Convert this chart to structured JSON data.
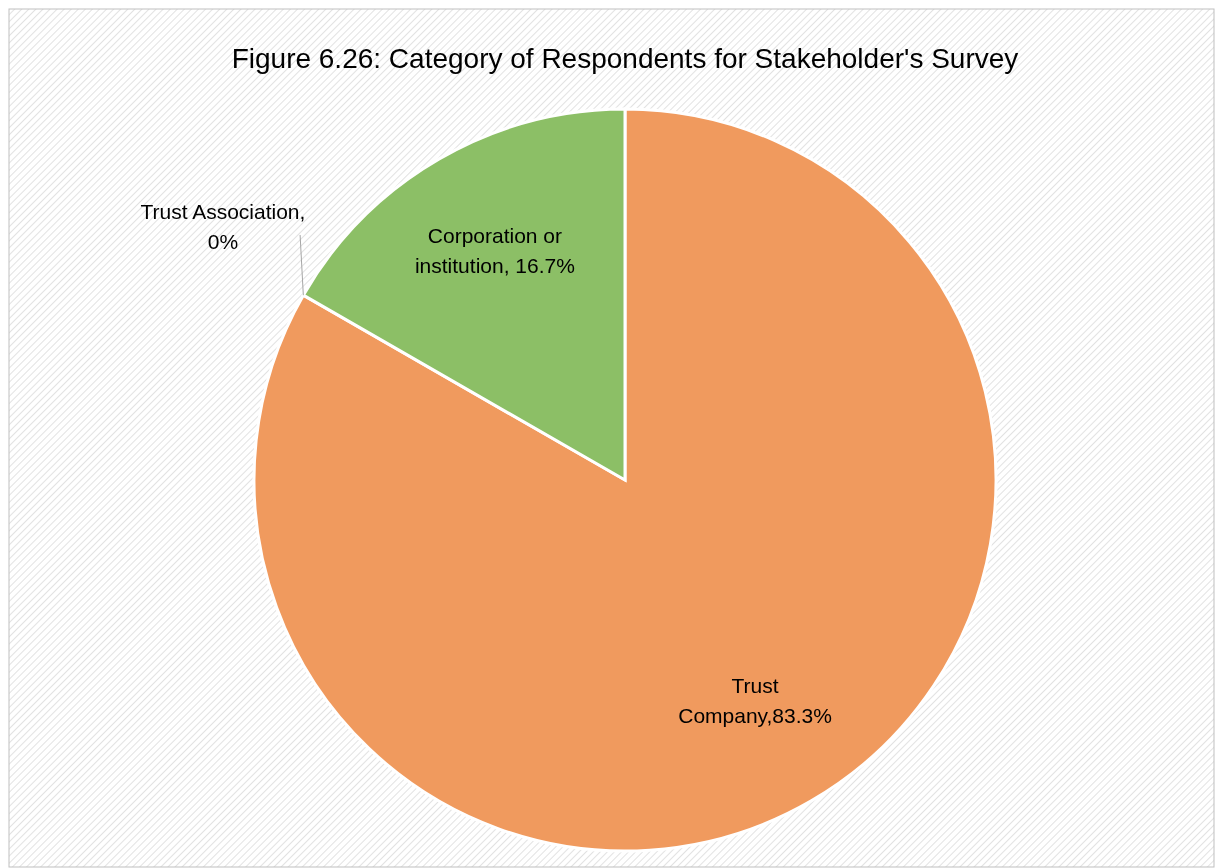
{
  "chart_data": {
    "type": "pie",
    "title": "Figure 6.26: Category of Respondents for Stakeholder's Survey",
    "categories": [
      "Trust Company",
      "Trust Association",
      "Corporation or institution"
    ],
    "values": [
      83.3,
      0,
      16.7
    ],
    "value_labels": [
      ",83.3%",
      ", 0%",
      ", 16.7%"
    ],
    "colors": [
      "#f09a5e",
      "#a5a5a5",
      "#8cbf66"
    ],
    "legend": false
  }
}
